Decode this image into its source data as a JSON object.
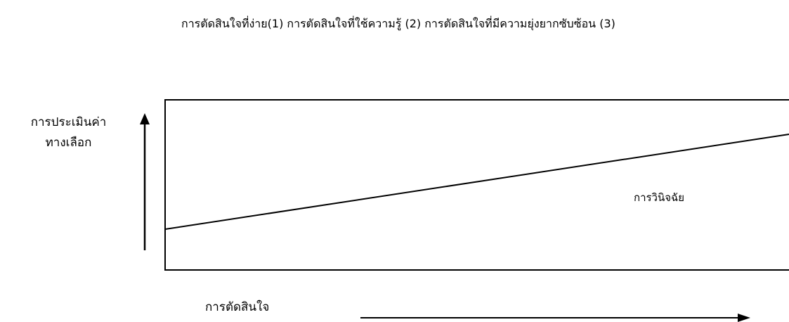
{
  "header": {
    "text": "การตัดสินใจที่ง่าย(1) การตัดสินใจที่ใช้ความรู้ (2) การตัดสินใจที่มีความยุ่งยากซับซ้อน (3)"
  },
  "axes": {
    "y_label_line1": "การประเมินค่า",
    "y_label_line2": "ทางเลือก",
    "x_label": "การตัดสินใจ"
  },
  "box": {
    "label": "การวินิจฉัย"
  },
  "colors": {
    "line": "#000000",
    "background": "#ffffff"
  }
}
